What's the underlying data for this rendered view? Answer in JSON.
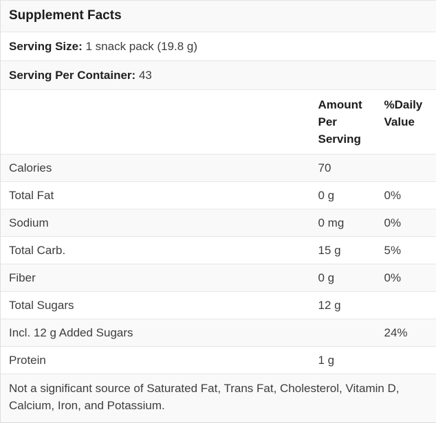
{
  "title": "Supplement Facts",
  "serving_size": {
    "label": "Serving Size:",
    "value": "1 snack pack (19.8 g)"
  },
  "servings_per_container": {
    "label": "Serving Per Container:",
    "value": "43"
  },
  "columns": {
    "amount": "Amount Per Serving",
    "daily_value": "%Daily Value"
  },
  "rows": [
    {
      "name": "Calories",
      "amount": "70",
      "dv": ""
    },
    {
      "name": "Total Fat",
      "amount": "0 g",
      "dv": "0%"
    },
    {
      "name": "Sodium",
      "amount": "0 mg",
      "dv": "0%"
    },
    {
      "name": "Total Carb.",
      "amount": "15 g",
      "dv": "5%"
    },
    {
      "name": "Fiber",
      "amount": "0 g",
      "dv": "0%"
    },
    {
      "name": "Total Sugars",
      "amount": "12 g",
      "dv": ""
    },
    {
      "name": "Incl. 12 g Added Sugars",
      "amount": "",
      "dv": "24%"
    },
    {
      "name": "Protein",
      "amount": "1 g",
      "dv": ""
    }
  ],
  "footnote": "Not a significant source of Saturated Fat, Trans Fat, Cholesterol, Vitamin D, Calcium, Iron, and Potassium.",
  "colors": {
    "text": "#3d3d3d",
    "bold_text": "#1c1c1c",
    "border": "#e6e6e6",
    "stripe": "#f9f9f9",
    "background": "#ffffff"
  }
}
